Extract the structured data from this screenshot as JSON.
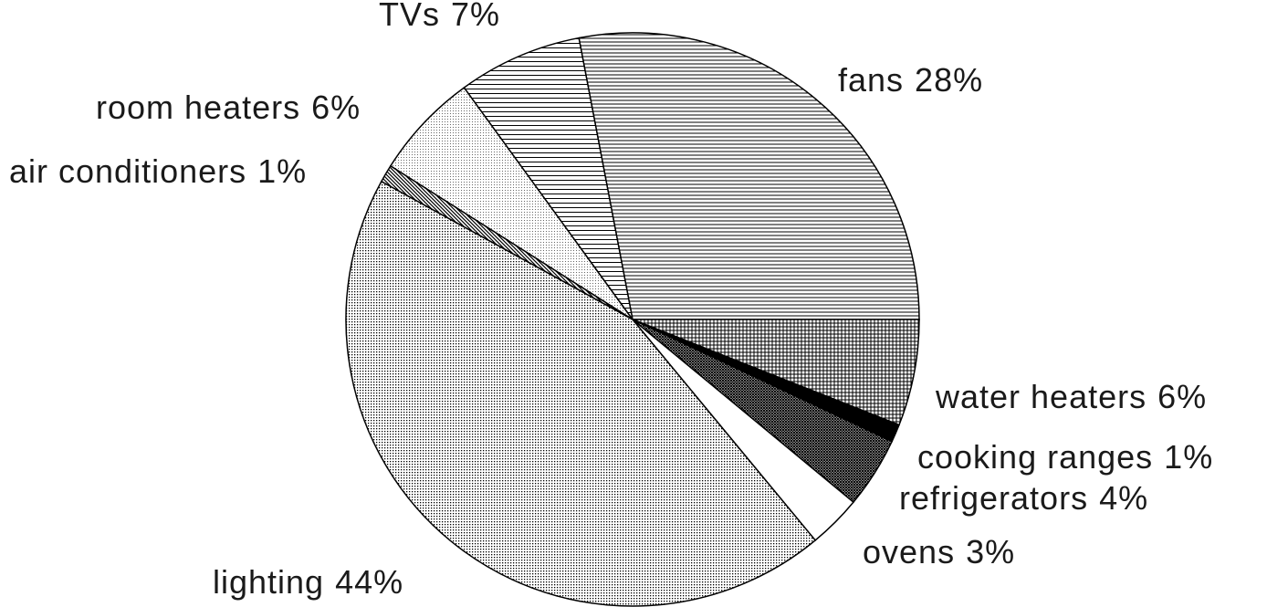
{
  "chart_data": {
    "type": "pie",
    "categories": [
      "fans",
      "water heaters",
      "cooking ranges",
      "refrigerators",
      "ovens",
      "lighting",
      "air conditioners",
      "room heaters",
      "TVs"
    ],
    "values": [
      28,
      6,
      1,
      4,
      3,
      44,
      1,
      6,
      7
    ],
    "value_labels": [
      "28%",
      "6%",
      "1%",
      "4%",
      "3%",
      "44%",
      "1%",
      "6%",
      "7%"
    ]
  }
}
